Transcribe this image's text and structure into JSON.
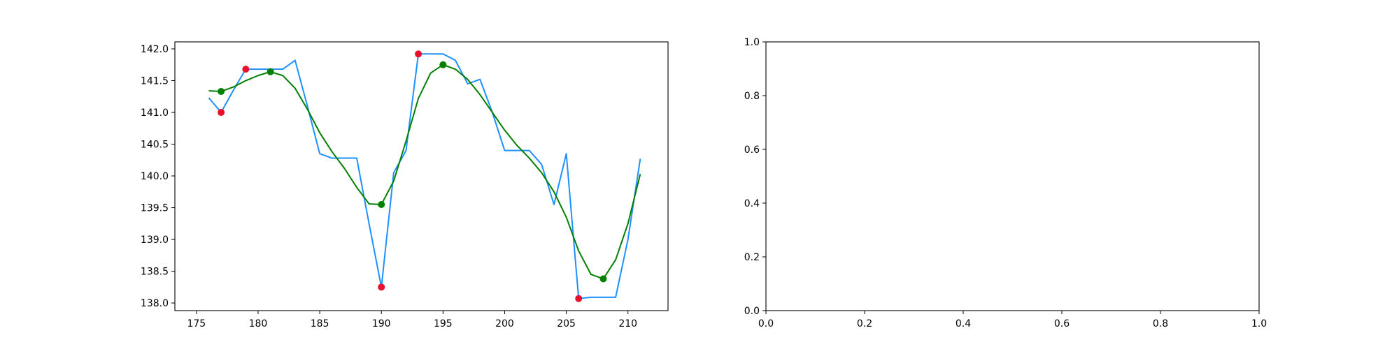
{
  "chart_data": [
    {
      "type": "line",
      "xlim": [
        173.25,
        213.25
      ],
      "ylim": [
        137.88,
        142.11
      ],
      "x_ticks": [
        175,
        180,
        185,
        190,
        195,
        200,
        205,
        210
      ],
      "y_ticks": [
        138.0,
        138.5,
        139.0,
        139.5,
        140.0,
        140.5,
        141.0,
        141.5,
        142.0
      ],
      "x_tick_labels": [
        "175",
        "180",
        "185",
        "190",
        "195",
        "200",
        "205",
        "210"
      ],
      "y_tick_labels": [
        "138.0",
        "138.5",
        "139.0",
        "139.5",
        "140.0",
        "140.5",
        "141.0",
        "141.5",
        "142.0"
      ],
      "grid": false,
      "series": [
        {
          "kind": "line",
          "color": "#1e90ff",
          "points": [
            [
              176,
              141.23
            ],
            [
              177,
              141.0
            ],
            [
              178,
              141.35
            ],
            [
              179,
              141.68
            ],
            [
              180,
              141.68
            ],
            [
              181,
              141.68
            ],
            [
              182,
              141.68
            ],
            [
              183,
              141.82
            ],
            [
              184,
              141.1
            ],
            [
              185,
              140.35
            ],
            [
              186,
              140.28
            ],
            [
              187,
              140.28
            ],
            [
              188,
              140.28
            ],
            [
              189,
              139.25
            ],
            [
              190,
              138.25
            ],
            [
              191,
              140.05
            ],
            [
              192,
              140.4
            ],
            [
              193,
              141.92
            ],
            [
              194,
              141.92
            ],
            [
              195,
              141.92
            ],
            [
              196,
              141.82
            ],
            [
              197,
              141.45
            ],
            [
              198,
              141.52
            ],
            [
              199,
              141.0
            ],
            [
              200,
              140.4
            ],
            [
              201,
              140.4
            ],
            [
              202,
              140.4
            ],
            [
              203,
              140.18
            ],
            [
              204,
              139.55
            ],
            [
              205,
              140.35
            ],
            [
              206,
              138.07
            ],
            [
              207,
              138.09
            ],
            [
              208,
              138.09
            ],
            [
              209,
              138.09
            ],
            [
              210,
              139.0
            ],
            [
              211,
              140.27
            ]
          ]
        },
        {
          "kind": "line",
          "color": "#008000",
          "points": [
            [
              176,
              141.34
            ],
            [
              177,
              141.33
            ],
            [
              178,
              141.4
            ],
            [
              179,
              141.5
            ],
            [
              180,
              141.58
            ],
            [
              181,
              141.64
            ],
            [
              182,
              141.58
            ],
            [
              183,
              141.38
            ],
            [
              184,
              141.05
            ],
            [
              185,
              140.68
            ],
            [
              186,
              140.38
            ],
            [
              187,
              140.12
            ],
            [
              188,
              139.82
            ],
            [
              189,
              139.56
            ],
            [
              190,
              139.55
            ],
            [
              191,
              139.92
            ],
            [
              192,
              140.55
            ],
            [
              193,
              141.22
            ],
            [
              194,
              141.62
            ],
            [
              195,
              141.75
            ],
            [
              196,
              141.68
            ],
            [
              197,
              141.52
            ],
            [
              198,
              141.28
            ],
            [
              199,
              141.0
            ],
            [
              200,
              140.72
            ],
            [
              201,
              140.48
            ],
            [
              202,
              140.28
            ],
            [
              203,
              140.05
            ],
            [
              204,
              139.75
            ],
            [
              205,
              139.35
            ],
            [
              206,
              138.82
            ],
            [
              207,
              138.45
            ],
            [
              208,
              138.38
            ],
            [
              209,
              138.68
            ],
            [
              210,
              139.25
            ],
            [
              211,
              140.03
            ]
          ]
        },
        {
          "kind": "scatter",
          "color": "#e8112d",
          "points": [
            [
              177,
              141.0
            ],
            [
              179,
              141.68
            ],
            [
              190,
              138.25
            ],
            [
              193,
              141.92
            ],
            [
              206,
              138.07
            ]
          ]
        },
        {
          "kind": "scatter",
          "color": "#008000",
          "points": [
            [
              177,
              141.33
            ],
            [
              181,
              141.64
            ],
            [
              190,
              139.55
            ],
            [
              195,
              141.75
            ],
            [
              208,
              138.38
            ]
          ]
        }
      ]
    },
    {
      "type": "line",
      "xlim": [
        0.0,
        1.0
      ],
      "ylim": [
        0.0,
        1.0
      ],
      "x_ticks": [
        0.0,
        0.2,
        0.4,
        0.6,
        0.8,
        1.0
      ],
      "y_ticks": [
        0.0,
        0.2,
        0.4,
        0.6,
        0.8,
        1.0
      ],
      "x_tick_labels": [
        "0.0",
        "0.2",
        "0.4",
        "0.6",
        "0.8",
        "1.0"
      ],
      "y_tick_labels": [
        "0.0",
        "0.2",
        "0.4",
        "0.6",
        "0.8",
        "1.0"
      ],
      "grid": false,
      "series": []
    }
  ]
}
